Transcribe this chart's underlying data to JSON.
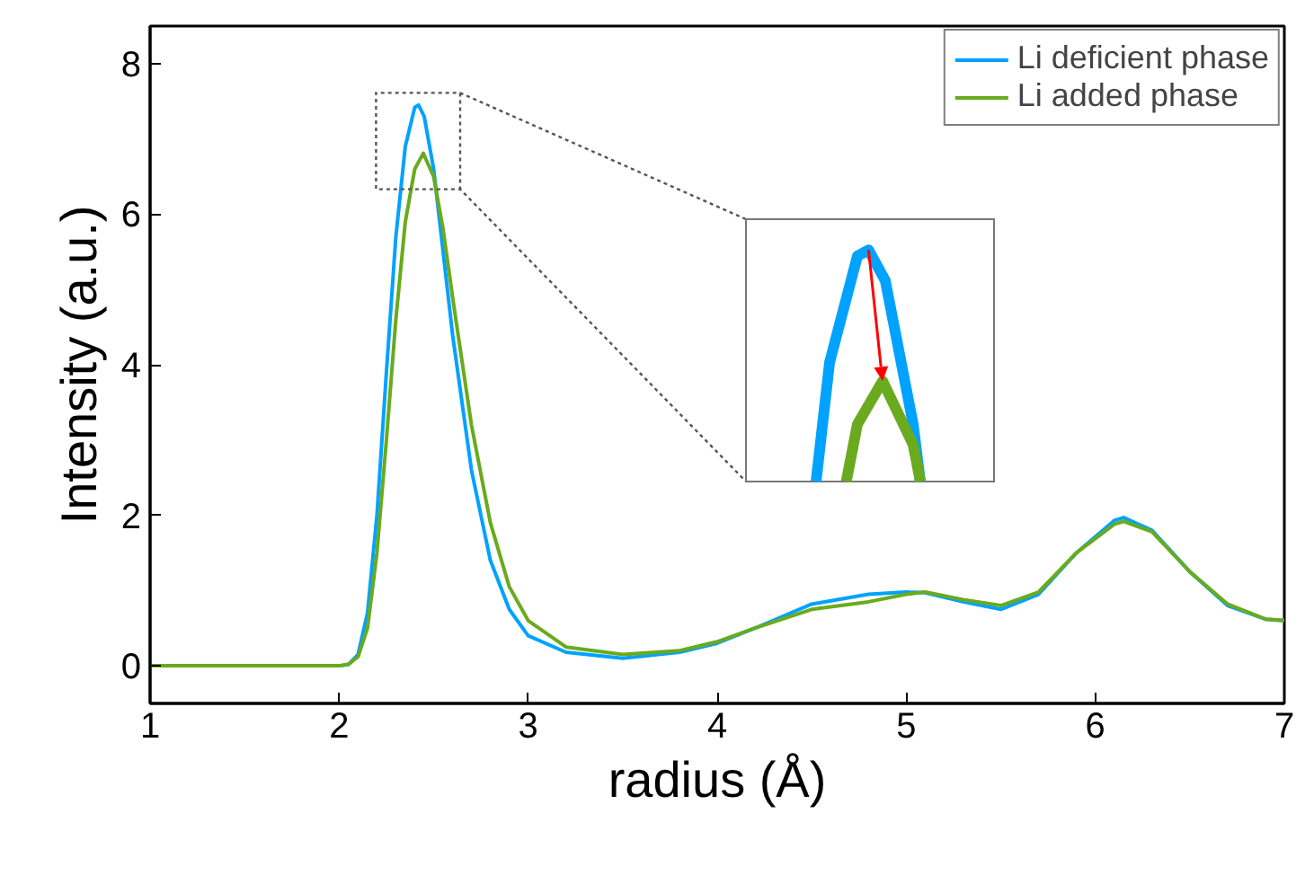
{
  "chart_data": {
    "type": "line",
    "xlabel": "radius (Å)",
    "ylabel": "Intensity (a.u.)",
    "xlim": [
      1,
      7
    ],
    "ylim": [
      -0.5,
      8.5
    ],
    "xticks": [
      1,
      2,
      3,
      4,
      5,
      6,
      7
    ],
    "yticks": [
      0,
      2,
      4,
      6,
      8
    ],
    "legend": "top right",
    "grid": false,
    "series": [
      {
        "name": "Li deficient phase",
        "color": "#00a2ff",
        "x": [
          1.0,
          2.0,
          2.05,
          2.1,
          2.15,
          2.2,
          2.25,
          2.3,
          2.35,
          2.4,
          2.42,
          2.45,
          2.5,
          2.55,
          2.6,
          2.7,
          2.8,
          2.9,
          3.0,
          3.2,
          3.5,
          3.8,
          4.0,
          4.2,
          4.5,
          4.8,
          5.0,
          5.1,
          5.3,
          5.5,
          5.7,
          5.9,
          6.1,
          6.15,
          6.3,
          6.5,
          6.7,
          6.9,
          7.0
        ],
        "values": [
          0,
          0,
          0.02,
          0.15,
          0.7,
          2.0,
          3.9,
          5.7,
          6.9,
          7.42,
          7.45,
          7.3,
          6.6,
          5.5,
          4.4,
          2.6,
          1.4,
          0.75,
          0.4,
          0.18,
          0.1,
          0.18,
          0.3,
          0.5,
          0.82,
          0.95,
          0.98,
          0.97,
          0.85,
          0.75,
          0.95,
          1.5,
          1.93,
          1.97,
          1.8,
          1.25,
          0.8,
          0.62,
          0.6
        ]
      },
      {
        "name": "Li added phase",
        "color": "#6aaa1e",
        "x": [
          1.0,
          2.0,
          2.05,
          2.1,
          2.15,
          2.2,
          2.25,
          2.3,
          2.35,
          2.4,
          2.445,
          2.5,
          2.55,
          2.6,
          2.7,
          2.8,
          2.9,
          3.0,
          3.2,
          3.5,
          3.8,
          4.0,
          4.2,
          4.5,
          4.8,
          5.0,
          5.1,
          5.3,
          5.5,
          5.7,
          5.9,
          6.1,
          6.15,
          6.3,
          6.5,
          6.7,
          6.9,
          7.0
        ],
        "values": [
          0,
          0,
          0.02,
          0.12,
          0.5,
          1.5,
          3.0,
          4.6,
          5.9,
          6.6,
          6.81,
          6.5,
          5.8,
          4.9,
          3.2,
          1.9,
          1.05,
          0.6,
          0.25,
          0.15,
          0.2,
          0.32,
          0.5,
          0.75,
          0.85,
          0.95,
          0.98,
          0.88,
          0.8,
          0.98,
          1.5,
          1.88,
          1.92,
          1.78,
          1.25,
          0.82,
          0.62,
          0.6
        ]
      }
    ]
  }
}
